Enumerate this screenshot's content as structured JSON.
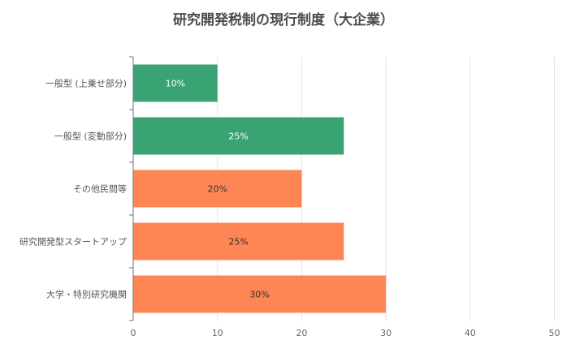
{
  "chart_data": {
    "type": "bar",
    "orientation": "horizontal",
    "title": "研究開発税制の現行制度（大企業）",
    "xlabel": "",
    "ylabel": "",
    "categories": [
      "一般型 (上乗せ部分)",
      "一般型 (変動部分)",
      "その他民間等",
      "研究開発型スタートアップ",
      "大学・特別研究機関"
    ],
    "values": [
      10,
      25,
      20,
      25,
      30
    ],
    "data_labels": [
      "10%",
      "25%",
      "20%",
      "25%",
      "30%"
    ],
    "bar_colors": [
      "#3aa373",
      "#3aa373",
      "#fe8554",
      "#fe8554",
      "#fe8554"
    ],
    "label_colors": [
      "#ffffff",
      "#ffffff",
      "#333333",
      "#333333",
      "#333333"
    ],
    "xlim": [
      0,
      50
    ],
    "xticks": [
      0,
      10,
      20,
      30,
      40,
      50
    ],
    "xtick_labels": [
      "0",
      "10",
      "20",
      "30",
      "40",
      "50"
    ],
    "grid": true,
    "legend": "none"
  }
}
